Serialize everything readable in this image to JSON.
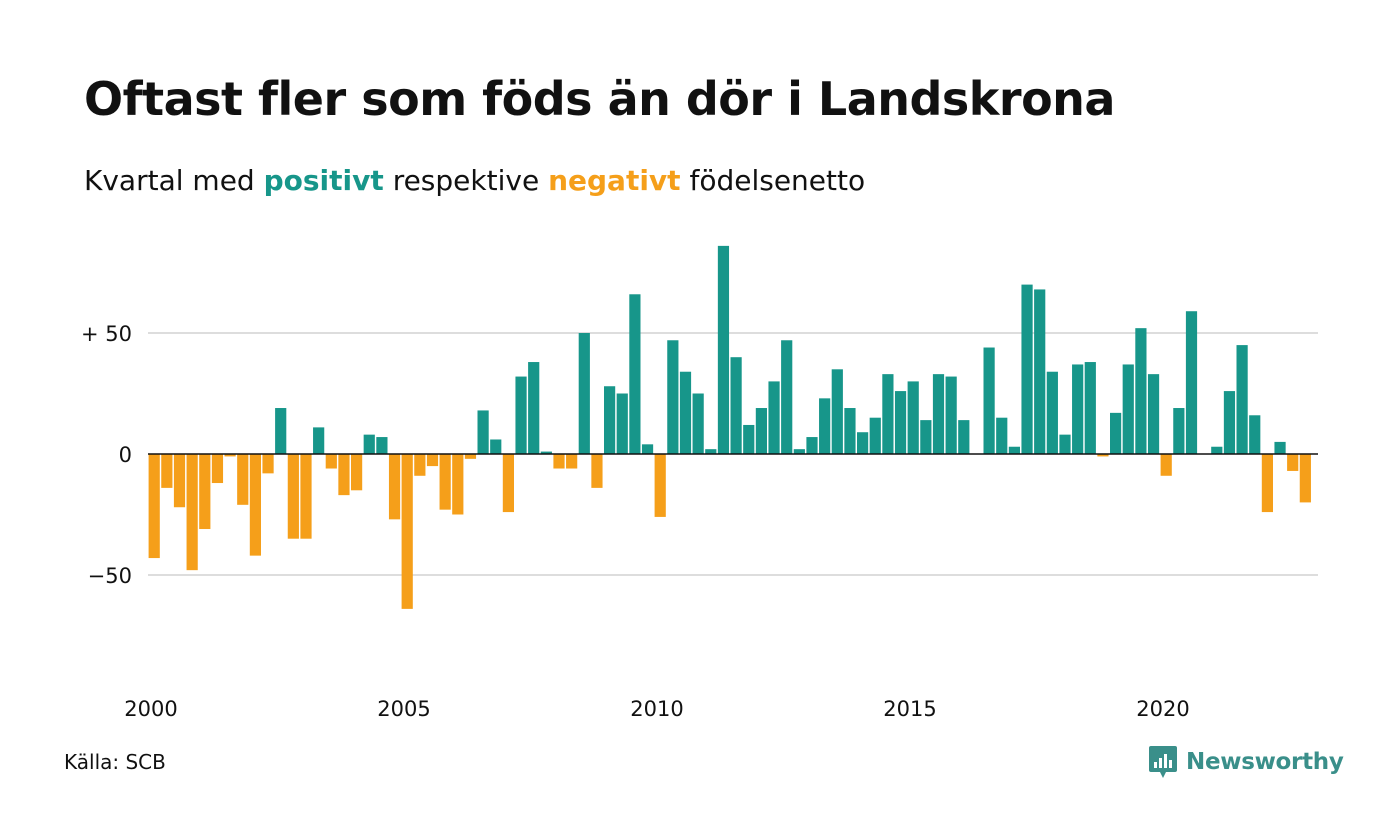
{
  "header": {
    "title": "Oftast fler som föds än dör i Landskrona",
    "subtitle_prefix": "Kvartal med",
    "subtitle_positive": "positivt",
    "subtitle_middle": "respektive",
    "subtitle_negative": "negativt",
    "subtitle_suffix": "födelsenetto"
  },
  "footer": {
    "source": "Källa: SCB",
    "brand": "Newsworthy"
  },
  "colors": {
    "positive": "#17968a",
    "negative": "#f59f1a",
    "grid": "#dddddd",
    "baseline": "#111111",
    "brand": "#3a8f8a"
  },
  "chart_data": {
    "type": "bar",
    "period": "quarterly",
    "start_year": 2000,
    "ylim": [
      -80,
      90
    ],
    "y_ticks": [
      {
        "value": 50,
        "label": "+ 50"
      },
      {
        "value": 0,
        "label": "0"
      },
      {
        "value": -50,
        "label": "−50"
      }
    ],
    "x_ticks": [
      {
        "value": 2000,
        "label": "2000"
      },
      {
        "value": 2005,
        "label": "2005"
      },
      {
        "value": 2010,
        "label": "2010"
      },
      {
        "value": 2015,
        "label": "2015"
      },
      {
        "value": 2020,
        "label": "2020"
      }
    ],
    "grid": true,
    "values": [
      -43,
      -14,
      -22,
      -48,
      -31,
      -12,
      -1,
      -21,
      -42,
      -8,
      19,
      -35,
      -35,
      11,
      -6,
      -17,
      -15,
      8,
      7,
      -27,
      -64,
      -9,
      -5,
      -23,
      -25,
      -2,
      18,
      6,
      -24,
      32,
      38,
      1,
      -6,
      -6,
      50,
      -14,
      28,
      25,
      66,
      4,
      -26,
      47,
      34,
      25,
      2,
      86,
      40,
      12,
      19,
      30,
      47,
      2,
      7,
      23,
      35,
      19,
      9,
      15,
      33,
      26,
      30,
      14,
      33,
      32,
      14,
      0,
      44,
      15,
      3,
      70,
      68,
      34,
      8,
      37,
      38,
      -1,
      17,
      37,
      52,
      33,
      -9,
      19,
      59,
      0,
      3,
      26,
      45,
      16,
      -24,
      5,
      -7,
      -20
    ]
  }
}
